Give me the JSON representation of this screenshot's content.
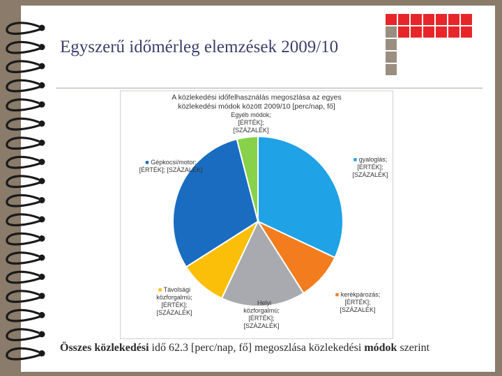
{
  "slide": {
    "title": "Egyszerű időmérleg elemzések 2009/10",
    "caption": {
      "part1": "Összes",
      "part2": "közlekedési",
      "part3": "idő 62.3 [perc/nap, fő] megoszlása közlekedési",
      "part4": "módok",
      "part5": "szerint"
    }
  },
  "colors": {
    "background": "#8a7b6a",
    "square_red": "#e8262a",
    "square_gray": "#9a8e80",
    "title": "#3e3e6a"
  },
  "chart_data": {
    "type": "pie",
    "title_line1": "A közlekedési időfelhasználás megoszlása az egyes",
    "title_line2": "közlekedési módok között 2009/10 [perc/nap, fő]",
    "start_angle_deg": 0,
    "slices": [
      {
        "name": "gyaloglás",
        "value": 32,
        "color": "#1fa2e6",
        "value_label": "[ÉRTÉK];",
        "pct_label": "[SZÁZALÉK]"
      },
      {
        "name": "kerékpározás",
        "value": 9,
        "color": "#f27c1e",
        "value_label": "[ÉRTÉK];",
        "pct_label": "[SZÁZALÉK]"
      },
      {
        "name": "Helyi közforgalmú",
        "value": 16,
        "color": "#a8aab0",
        "value_label": "[ÉRTÉK];",
        "pct_label": "[SZÁZALÉK]"
      },
      {
        "name": "Távolsági közforgalmú",
        "value": 9,
        "color": "#fbbf0a",
        "value_label": "[ÉRTÉK];",
        "pct_label": "[SZÁZALÉK]"
      },
      {
        "name": "Gépkocsi/motor",
        "value": 30,
        "color": "#1a6cc0",
        "value_label": "[ÉRTÉK];",
        "pct_label": "[SZÁZALÉK]"
      },
      {
        "name": "Egyéb módok",
        "value": 4,
        "color": "#88d14a",
        "value_label": "[ÉRTÉK];",
        "pct_label": "[SZÁZALÉK]"
      }
    ],
    "labels": {
      "gyaloglas": {
        "l1": "gyaloglás;",
        "l2": "[ÉRTÉK];",
        "l3": "[SZÁZALÉK]"
      },
      "kerekpar": {
        "l1": "kerékpározás;",
        "l2": "[ÉRTÉK];",
        "l3": "[SZÁZALÉK]"
      },
      "helyi": {
        "l1": "Helyi",
        "l2": "közforgalmú;",
        "l3": "[ÉRTÉK];",
        "l4": "[SZÁZALÉK]"
      },
      "tavolsagi": {
        "l1": "Távolsági",
        "l2": "közforgalmú;",
        "l3": "[ÉRTÉK];",
        "l4": "[SZÁZALÉK]"
      },
      "gepkocsi": {
        "l1": "Gépkocsi/motor;",
        "l2": "[ÉRTÉK]; [SZÁZALÉK]"
      },
      "egyeb": {
        "l1": "Egyéb módok;",
        "l2": "[ÉRTÉK];",
        "l3": "[SZÁZALÉK]"
      }
    }
  }
}
